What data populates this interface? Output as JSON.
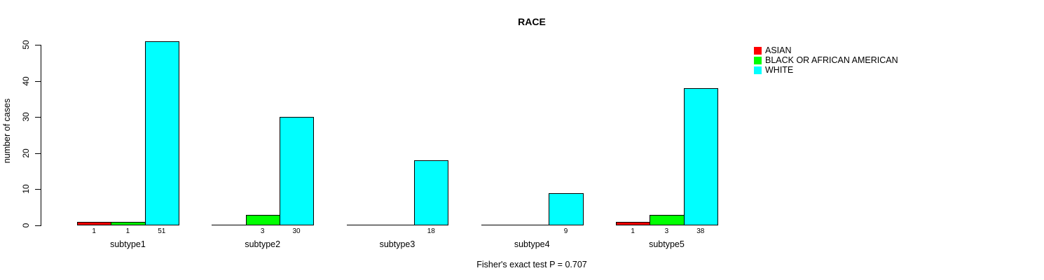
{
  "chart_data": {
    "type": "bar",
    "grouped": true,
    "title": "RACE",
    "xlabel": "",
    "ylabel": "number of cases",
    "categories": [
      "subtype1",
      "subtype2",
      "subtype3",
      "subtype4",
      "subtype5"
    ],
    "series": [
      {
        "name": "ASIAN",
        "color": "#ff0000",
        "values": [
          1,
          0,
          0,
          0,
          1
        ]
      },
      {
        "name": "BLACK OR AFRICAN AMERICAN",
        "color": "#00ff00",
        "values": [
          1,
          3,
          0,
          0,
          3
        ]
      },
      {
        "name": "WHITE",
        "color": "#00ffff",
        "values": [
          51,
          30,
          18,
          9,
          38
        ]
      }
    ],
    "ylim": [
      0,
      51
    ],
    "yticks": [
      0,
      10,
      20,
      30,
      40,
      50
    ],
    "grid": false,
    "legend_position": "top-right",
    "bar_value_labels": "numeric value printed below baseline under each nonzero bar",
    "annotation": "Fisher's exact test P = 0.707"
  },
  "colors": {
    "background": "#ffffff",
    "axis": "#000000",
    "bar_border": "#000000",
    "text": "#000000"
  }
}
